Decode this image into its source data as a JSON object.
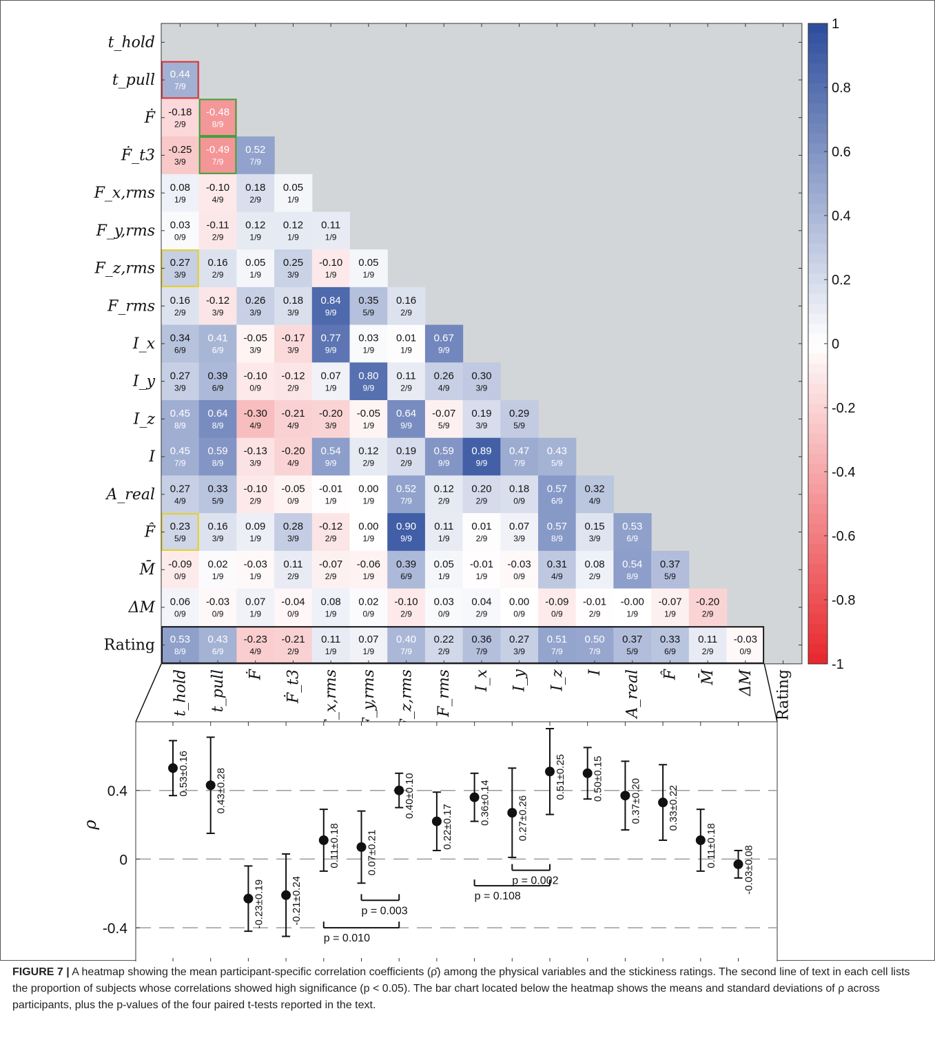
{
  "chart_data": [
    {
      "type": "heatmap",
      "title": "",
      "row_labels": [
        "t_hold",
        "t_pull",
        "Ḟ",
        "Ḟ_t3",
        "F_x,rms",
        "F_y,rms",
        "F_z,rms",
        "F_rms",
        "I_x",
        "I_y",
        "I_z",
        "I",
        "A_real",
        "F̂",
        "M̄",
        "ΔM",
        "Rating"
      ],
      "col_labels": [
        "t_hold",
        "t_pull",
        "Ḟ",
        "Ḟ_t3",
        "F_x,rms",
        "F_y,rms",
        "F_z,rms",
        "F_rms",
        "I_x",
        "I_y",
        "I_z",
        "I",
        "A_real",
        "F̂",
        "M̄",
        "ΔM",
        "Rating"
      ],
      "lower_triangle_values": [
        [],
        [
          0.44
        ],
        [
          -0.18,
          -0.48
        ],
        [
          -0.25,
          -0.49,
          0.52
        ],
        [
          0.08,
          -0.1,
          0.18,
          0.05
        ],
        [
          0.03,
          -0.11,
          0.12,
          0.12,
          0.11
        ],
        [
          0.27,
          0.16,
          0.05,
          0.25,
          -0.1,
          0.05
        ],
        [
          0.16,
          -0.12,
          0.26,
          0.18,
          0.84,
          0.35,
          0.16
        ],
        [
          0.34,
          0.41,
          -0.05,
          -0.17,
          0.77,
          0.03,
          0.01,
          0.67
        ],
        [
          0.27,
          0.39,
          -0.1,
          -0.12,
          0.07,
          0.8,
          0.11,
          0.26,
          0.3
        ],
        [
          0.45,
          0.64,
          -0.3,
          -0.21,
          -0.2,
          -0.05,
          0.64,
          -0.07,
          0.19,
          0.29
        ],
        [
          0.45,
          0.59,
          -0.13,
          -0.2,
          0.54,
          0.12,
          0.19,
          0.59,
          0.89,
          0.47,
          0.43
        ],
        [
          0.27,
          0.33,
          -0.1,
          -0.05,
          -0.01,
          0.0,
          0.52,
          0.12,
          0.2,
          0.18,
          0.57,
          0.32
        ],
        [
          0.23,
          0.16,
          0.09,
          0.28,
          -0.12,
          0.0,
          0.9,
          0.11,
          0.01,
          0.07,
          0.57,
          0.15,
          0.53
        ],
        [
          -0.09,
          0.02,
          -0.03,
          0.11,
          -0.07,
          -0.06,
          0.39,
          0.05,
          -0.01,
          -0.03,
          0.31,
          0.08,
          0.54,
          0.37
        ],
        [
          0.06,
          -0.03,
          0.07,
          -0.04,
          0.08,
          0.02,
          -0.1,
          0.03,
          0.04,
          0.0,
          -0.09,
          -0.01,
          -0.0,
          -0.07,
          -0.2
        ],
        [
          0.53,
          0.43,
          -0.23,
          -0.21,
          0.11,
          0.07,
          0.4,
          0.22,
          0.36,
          0.27,
          0.51,
          0.5,
          0.37,
          0.33,
          0.11,
          -0.03
        ]
      ],
      "lower_triangle_proportions": [
        [],
        [
          "7/9"
        ],
        [
          "2/9",
          "8/9"
        ],
        [
          "3/9",
          "7/9",
          "7/9"
        ],
        [
          "1/9",
          "4/9",
          "2/9",
          "1/9"
        ],
        [
          "0/9",
          "2/9",
          "1/9",
          "1/9",
          "1/9"
        ],
        [
          "3/9",
          "2/9",
          "1/9",
          "3/9",
          "1/9",
          "1/9"
        ],
        [
          "2/9",
          "3/9",
          "3/9",
          "3/9",
          "9/9",
          "5/9",
          "2/9"
        ],
        [
          "6/9",
          "6/9",
          "3/9",
          "3/9",
          "9/9",
          "1/9",
          "1/9",
          "9/9"
        ],
        [
          "3/9",
          "6/9",
          "0/9",
          "2/9",
          "1/9",
          "9/9",
          "2/9",
          "4/9",
          "3/9"
        ],
        [
          "8/9",
          "8/9",
          "4/9",
          "4/9",
          "3/9",
          "1/9",
          "9/9",
          "5/9",
          "3/9",
          "5/9"
        ],
        [
          "7/9",
          "8/9",
          "3/9",
          "4/9",
          "9/9",
          "2/9",
          "2/9",
          "9/9",
          "9/9",
          "7/9",
          "5/9"
        ],
        [
          "4/9",
          "5/9",
          "2/9",
          "0/9",
          "1/9",
          "1/9",
          "7/9",
          "2/9",
          "2/9",
          "0/9",
          "6/9",
          "4/9"
        ],
        [
          "5/9",
          "3/9",
          "1/9",
          "3/9",
          "2/9",
          "1/9",
          "9/9",
          "1/9",
          "2/9",
          "3/9",
          "8/9",
          "3/9",
          "6/9"
        ],
        [
          "0/9",
          "1/9",
          "1/9",
          "2/9",
          "2/9",
          "1/9",
          "6/9",
          "1/9",
          "1/9",
          "0/9",
          "4/9",
          "2/9",
          "8/9",
          "5/9"
        ],
        [
          "0/9",
          "0/9",
          "1/9",
          "0/9",
          "1/9",
          "0/9",
          "2/9",
          "0/9",
          "2/9",
          "0/9",
          "0/9",
          "2/9",
          "1/9",
          "1/9",
          "2/9"
        ],
        [
          "8/9",
          "6/9",
          "4/9",
          "2/9",
          "1/9",
          "1/9",
          "7/9",
          "2/9",
          "7/9",
          "3/9",
          "7/9",
          "7/9",
          "5/9",
          "6/9",
          "2/9",
          "0/9"
        ]
      ],
      "highlight_boxes": [
        {
          "row": 1,
          "col": 0,
          "color": "#e03030"
        },
        {
          "row": 2,
          "col": 1,
          "color": "#3aa23a"
        },
        {
          "row": 3,
          "col": 1,
          "color": "#3aa23a"
        },
        {
          "row": 6,
          "col": 0,
          "color": "#e8d020"
        },
        {
          "row": 13,
          "col": 0,
          "color": "#e8d020"
        },
        {
          "row": 16,
          "col": 0,
          "color": "#111111",
          "span": 16
        }
      ],
      "colorbar": {
        "range": [
          -1,
          1
        ],
        "ticks": [
          "1",
          "0.8",
          "0.6",
          "0.4",
          "0.2",
          "0",
          "-0.2",
          "-0.4",
          "-0.6",
          "-0.8",
          "-1"
        ],
        "positive_color": "#2c4c9c",
        "negative_color": "#e8262b",
        "mask_color": "#d3d6d8"
      }
    },
    {
      "type": "scatter",
      "ylabel": "ρ",
      "yticks": [
        "0.4",
        "0",
        "-0.4"
      ],
      "ylim": [
        -0.6,
        0.8
      ],
      "categories": [
        "t_hold",
        "t_pull",
        "Ḟ",
        "Ḟ_t3",
        "F_x,rms",
        "F_y,rms",
        "F_z,rms",
        "F_rms",
        "I_x",
        "I_y",
        "I_z",
        "I",
        "A_real",
        "F̂",
        "M̄",
        "ΔM"
      ],
      "means": [
        0.53,
        0.43,
        -0.23,
        -0.21,
        0.11,
        0.07,
        0.4,
        0.22,
        0.36,
        0.27,
        0.51,
        0.5,
        0.37,
        0.33,
        0.11,
        -0.03
      ],
      "sds": [
        0.16,
        0.28,
        0.19,
        0.24,
        0.18,
        0.21,
        0.1,
        0.17,
        0.14,
        0.26,
        0.25,
        0.15,
        0.2,
        0.22,
        0.18,
        0.08
      ],
      "value_labels": [
        "0.53±0.16",
        "0.43±0.28",
        "-0.23±0.19",
        "-0.21±0.24",
        "0.11±0.18",
        "0.07±0.21",
        "0.40±0.10",
        "0.22±0.17",
        "0.36±0.14",
        "0.27±0.26",
        "0.51±0.25",
        "0.50±0.15",
        "0.37±0.20",
        "0.33±0.22",
        "0.11±0.18",
        "-0.03±0.08"
      ],
      "dashed_reference_lines": [
        0.4,
        0,
        -0.4
      ],
      "brackets": [
        {
          "from": 4,
          "to": 6,
          "label": "p = 0.010"
        },
        {
          "from": 5,
          "to": 6,
          "label": "p = 0.003"
        },
        {
          "from": 8,
          "to": 10,
          "label": "p = 0.108"
        },
        {
          "from": 9,
          "to": 10,
          "label": "p = 0.002"
        }
      ]
    }
  ],
  "caption": {
    "lead": "FIGURE 7 |",
    "text": " A heatmap showing the mean participant-specific correlation coefficients (ρ̄) among the physical variables and the stickiness ratings. The second line of text in each cell lists the proportion of subjects whose correlations showed high significance (p < 0.05). The bar chart located below the heatmap shows the means and standard deviations of ρ across participants, plus the p-values of the four paired t-tests reported in the text."
  }
}
